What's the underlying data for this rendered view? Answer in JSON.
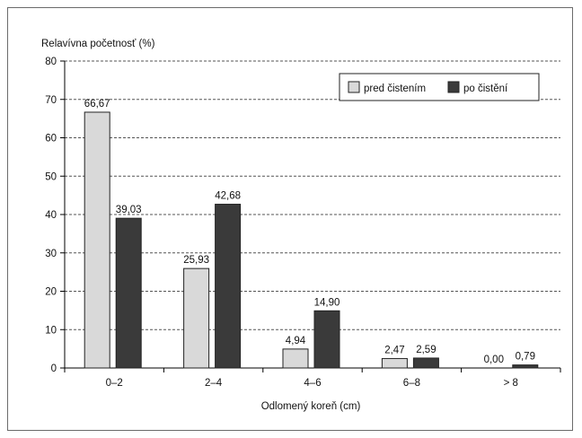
{
  "chart_data": {
    "type": "bar",
    "ylabel": "Relavívna početnosť  (%)",
    "xlabel": "Odlomený koreň (cm)",
    "categories": [
      "0–2",
      "2–4",
      "4–6",
      "6–8",
      "> 8"
    ],
    "series": [
      {
        "name": "pred čistením",
        "values": [
          66.67,
          25.93,
          4.94,
          2.47,
          0.0
        ],
        "labels": [
          "66,67",
          "25,93",
          "4,94",
          "2,47",
          "0,00"
        ],
        "color": "#d9d9d9"
      },
      {
        "name": "po čistění",
        "values": [
          39.03,
          42.68,
          14.9,
          2.59,
          0.79
        ],
        "labels": [
          "39,03",
          "42,68",
          "14,90",
          "2,59",
          "0,79"
        ],
        "color": "#3a3a3a"
      }
    ],
    "yticks": [
      "0",
      "10",
      "20",
      "30",
      "40",
      "50",
      "60",
      "70",
      "80"
    ],
    "ylim": [
      0,
      80
    ],
    "grid": true,
    "legend": "top-right"
  }
}
